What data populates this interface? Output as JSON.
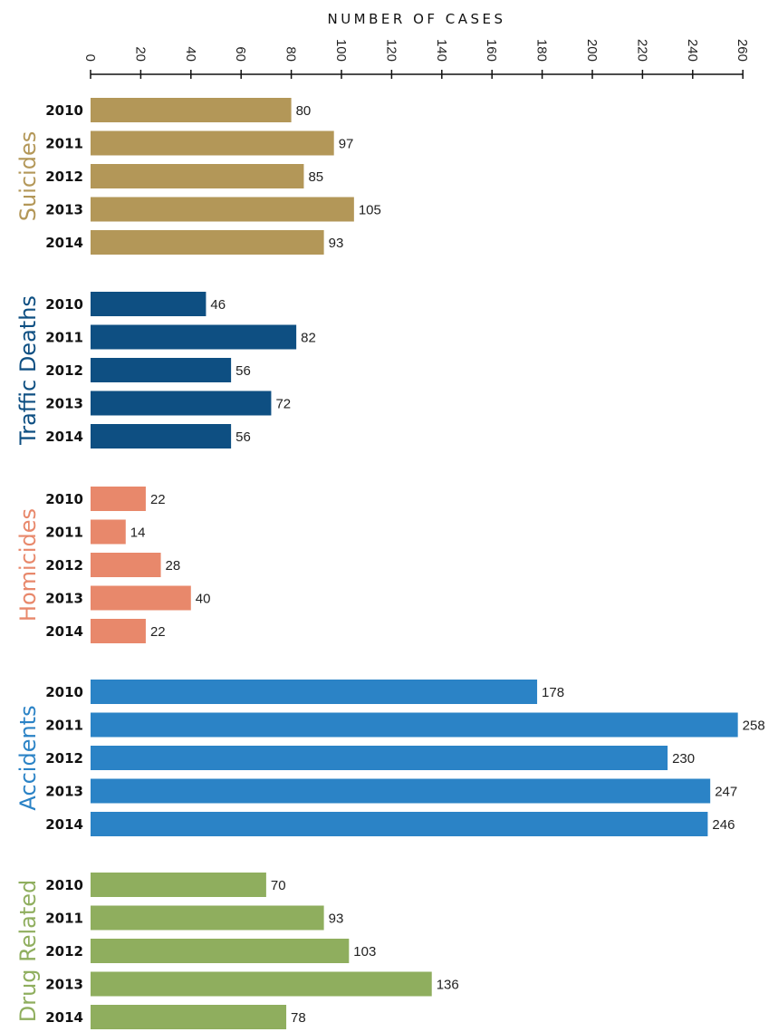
{
  "chart_data": {
    "type": "bar",
    "orientation": "horizontal",
    "xlabel": "NUMBER OF CASES",
    "xlim": [
      0,
      260
    ],
    "ticks": [
      "0",
      "20",
      "40",
      "60",
      "80",
      "100",
      "120",
      "140",
      "160",
      "180",
      "200",
      "220",
      "240",
      "260"
    ],
    "categories": [
      "2010",
      "2011",
      "2012",
      "2013",
      "2014"
    ],
    "grid": false,
    "series": [
      {
        "name": "Suicides",
        "color": "#b39758",
        "values": [
          80,
          97,
          85,
          105,
          93
        ]
      },
      {
        "name": "Traffic Deaths",
        "color": "#0e4f82",
        "values": [
          46,
          82,
          56,
          72,
          56
        ]
      },
      {
        "name": "Homicides",
        "color": "#e8886b",
        "values": [
          22,
          14,
          28,
          40,
          22
        ]
      },
      {
        "name": "Accidents",
        "color": "#2b83c6",
        "values": [
          178,
          258,
          230,
          247,
          246
        ]
      },
      {
        "name": "Drug Related",
        "color": "#8fae5e",
        "values": [
          70,
          93,
          103,
          136,
          78
        ]
      }
    ]
  }
}
